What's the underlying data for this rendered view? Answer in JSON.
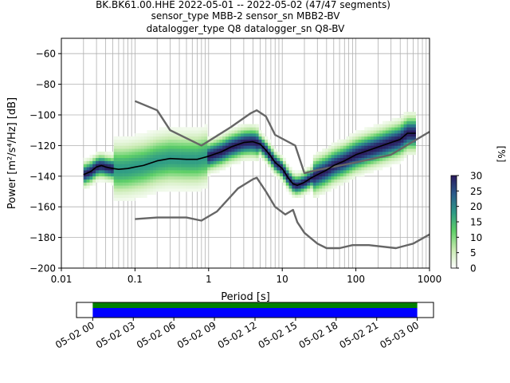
{
  "title": {
    "line1": "BK.BK61.00.HHE   2022-05-01 -- 2022-05-02  (47/47 segments)",
    "line2": "sensor_type MBB-2 sensor_sn MBB2-BV",
    "line3": "datalogger_type Q8 datalogger_sn Q8-BV"
  },
  "chart_data": {
    "type": "heatmap",
    "xlabel": "Period [s]",
    "ylabel": "Power [m²/s⁴/Hz] [dB]",
    "xscale": "log",
    "xlim": [
      0.01,
      1000
    ],
    "ylim": [
      -200,
      -50
    ],
    "x_ticks": [
      {
        "value": 0.01,
        "label": "0.01"
      },
      {
        "value": 0.1,
        "label": "0.1"
      },
      {
        "value": 1,
        "label": "1"
      },
      {
        "value": 10,
        "label": "10"
      },
      {
        "value": 100,
        "label": "100"
      },
      {
        "value": 1000,
        "label": "1000"
      }
    ],
    "y_ticks": [
      {
        "value": -60,
        "label": "−60"
      },
      {
        "value": -80,
        "label": "−80"
      },
      {
        "value": -100,
        "label": "−100"
      },
      {
        "value": -120,
        "label": "−120"
      },
      {
        "value": -140,
        "label": "−140"
      },
      {
        "value": -160,
        "label": "−160"
      },
      {
        "value": -180,
        "label": "−180"
      },
      {
        "value": -200,
        "label": "−200"
      }
    ],
    "grid": true,
    "colorbar": {
      "label": "[%]",
      "range": [
        0,
        30
      ],
      "ticks": [
        {
          "value": 0,
          "label": "0"
        },
        {
          "value": 5,
          "label": "5"
        },
        {
          "value": 10,
          "label": "10"
        },
        {
          "value": 15,
          "label": "15"
        },
        {
          "value": 20,
          "label": "20"
        },
        {
          "value": 25,
          "label": "25"
        },
        {
          "value": 30,
          "label": "30"
        }
      ],
      "colors": [
        "#ffffff",
        "#c7eab0",
        "#5fd068",
        "#2e9a86",
        "#2b5c8c",
        "#2a1a5e"
      ]
    },
    "series": [
      {
        "color": "#000000",
        "points": [
          [
            0.02,
            -139
          ],
          [
            0.025,
            -137
          ],
          [
            0.03,
            -134
          ],
          [
            0.035,
            -133
          ],
          [
            0.04,
            -134
          ],
          [
            0.05,
            -135
          ],
          [
            0.06,
            -135.5
          ],
          [
            0.08,
            -135
          ],
          [
            0.1,
            -134
          ],
          [
            0.13,
            -133
          ],
          [
            0.2,
            -130
          ],
          [
            0.3,
            -128.5
          ],
          [
            0.5,
            -129
          ],
          [
            0.7,
            -129
          ],
          [
            1,
            -127
          ],
          [
            1.5,
            -124
          ],
          [
            2,
            -121
          ],
          [
            3,
            -118
          ],
          [
            4,
            -117.5
          ],
          [
            5,
            -119
          ],
          [
            6,
            -123
          ],
          [
            7,
            -127
          ],
          [
            8,
            -131
          ],
          [
            10,
            -135
          ],
          [
            12,
            -141
          ],
          [
            14,
            -145
          ],
          [
            16,
            -146
          ],
          [
            18,
            -145
          ],
          [
            20,
            -144
          ],
          [
            25,
            -141
          ],
          [
            30,
            -139
          ],
          [
            40,
            -136
          ],
          [
            50,
            -133
          ],
          [
            70,
            -130
          ],
          [
            100,
            -126
          ],
          [
            150,
            -123
          ],
          [
            200,
            -121
          ],
          [
            300,
            -118
          ],
          [
            400,
            -116
          ],
          [
            500,
            -112
          ],
          [
            650,
            -112
          ]
        ]
      },
      {
        "color": "#666666",
        "points": [
          [
            0.1,
            -91
          ],
          [
            0.2,
            -97
          ],
          [
            0.3,
            -110
          ],
          [
            0.8,
            -120
          ],
          [
            2,
            -108
          ],
          [
            3.7,
            -99
          ],
          [
            4.5,
            -97
          ],
          [
            6,
            -101
          ],
          [
            8,
            -113
          ],
          [
            15,
            -120
          ],
          [
            20,
            -138
          ],
          [
            30,
            -136
          ],
          [
            100,
            -131
          ],
          [
            300,
            -126
          ],
          [
            1000,
            -111
          ]
        ]
      },
      {
        "color": "#666666",
        "points": [
          [
            0.1,
            -168
          ],
          [
            0.2,
            -167
          ],
          [
            0.5,
            -167
          ],
          [
            0.8,
            -169
          ],
          [
            1.3,
            -163
          ],
          [
            2.5,
            -148
          ],
          [
            4,
            -142
          ],
          [
            4.5,
            -141
          ],
          [
            6,
            -150
          ],
          [
            8,
            -160
          ],
          [
            11,
            -165
          ],
          [
            14,
            -162
          ],
          [
            16,
            -170
          ],
          [
            20,
            -177
          ],
          [
            30,
            -184
          ],
          [
            40,
            -187
          ],
          [
            60,
            -187
          ],
          [
            90,
            -185
          ],
          [
            150,
            -185
          ],
          [
            350,
            -187
          ],
          [
            600,
            -184
          ],
          [
            1000,
            -178
          ]
        ]
      }
    ]
  },
  "timeline": {
    "ticks": [
      {
        "value": 0,
        "label": "05-02 00"
      },
      {
        "value": 3,
        "label": "05-02 03"
      },
      {
        "value": 6,
        "label": "05-02 06"
      },
      {
        "value": 9,
        "label": "05-02 09"
      },
      {
        "value": 12,
        "label": "05-02 12"
      },
      {
        "value": 15,
        "label": "05-02 15"
      },
      {
        "value": 18,
        "label": "05-02 18"
      },
      {
        "value": 21,
        "label": "05-02 21"
      },
      {
        "value": 24,
        "label": "05-03 00"
      }
    ],
    "range": [
      -1.2,
      25.2
    ],
    "bar_range": [
      0,
      24
    ],
    "colors": {
      "top": "#008000",
      "bottom": "#0000ff"
    }
  }
}
